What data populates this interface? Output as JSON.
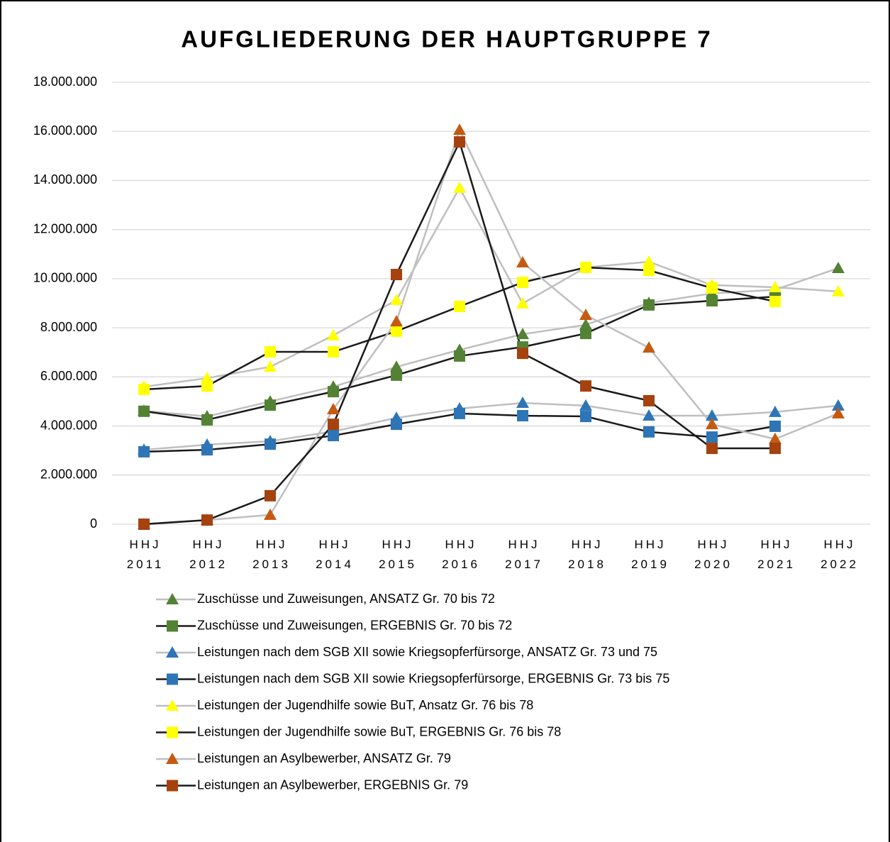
{
  "chart_data": {
    "type": "line",
    "title": "AUFGLIEDERUNG DER HAUPTGRUPPE 7",
    "categories": [
      "HHJ 2011",
      "HHJ 2012",
      "HHJ 2013",
      "HHJ 2014",
      "HHJ 2015",
      "HHJ 2016",
      "HHJ 2017",
      "HHJ 2018",
      "HHJ 2019",
      "HHJ 2020",
      "HHJ 2021",
      "HHJ 2022"
    ],
    "ylim": [
      0,
      18000000
    ],
    "yticks": [
      0,
      {
        "value": 2000000,
        "label": "2.000.000"
      },
      {
        "value": 4000000,
        "label": "4.000.000"
      },
      {
        "value": 6000000,
        "label": "6.000.000"
      },
      {
        "value": 8000000,
        "label": "8.000.000"
      },
      {
        "value": 10000000,
        "label": "10.000.000"
      },
      {
        "value": 12000000,
        "label": "12.000.000"
      },
      {
        "value": 14000000,
        "label": "14.000.000"
      },
      {
        "value": 16000000,
        "label": "16.000.000"
      },
      {
        "value": 18000000,
        "label": "18.000.000"
      }
    ],
    "grid": true,
    "series": [
      {
        "name": "Zuschüsse und Zuweisungen, ANSATZ Gr. 70 bis 72",
        "color": "#548235",
        "line_color": "#bfbfbf",
        "marker": "triangle",
        "values": [
          4620000,
          4390000,
          5000000,
          5600000,
          6410000,
          7100000,
          7740000,
          8120000,
          9010000,
          9400000,
          9550000,
          10430000
        ]
      },
      {
        "name": "Zuschüsse und Zuweisungen, ERGEBNIS Gr. 70 bis 72",
        "color": "#548235",
        "line_color": "#1a1a1a",
        "marker": "square",
        "values": [
          4600000,
          4250000,
          4850000,
          5400000,
          6070000,
          6850000,
          7220000,
          7770000,
          8930000,
          9100000,
          9270000,
          null
        ]
      },
      {
        "name": "Leistungen nach dem SGB XII sowie Kriegsopferfürsorge, ANSATZ Gr. 73 und 75",
        "color": "#2e75b6",
        "line_color": "#bfbfbf",
        "marker": "triangle",
        "values": [
          3030000,
          3240000,
          3380000,
          3780000,
          4330000,
          4710000,
          4940000,
          4830000,
          4420000,
          4420000,
          4570000,
          4830000
        ]
      },
      {
        "name": "Leistungen nach dem SGB XII sowie Kriegsopferfürsorge, ERGEBNIS Gr. 73 bis 75",
        "color": "#2e75b6",
        "line_color": "#1a1a1a",
        "marker": "square",
        "values": [
          2950000,
          3030000,
          3260000,
          3610000,
          4070000,
          4510000,
          4420000,
          4390000,
          3760000,
          3550000,
          3990000,
          null
        ]
      },
      {
        "name": "Leistungen der Jugendhilfe sowie BuT, Ansatz Gr. 76 bis 78",
        "color": "#ffff00",
        "line_color": "#bfbfbf",
        "marker": "triangle",
        "values": [
          5600000,
          5950000,
          6410000,
          7690000,
          9130000,
          13700000,
          8990000,
          10460000,
          10690000,
          9740000,
          9650000,
          9480000
        ]
      },
      {
        "name": "Leistungen der Jugendhilfe sowie BuT, ERGEBNIS Gr. 76 bis 78",
        "color": "#ffff00",
        "line_color": "#1a1a1a",
        "marker": "square",
        "values": [
          5490000,
          5630000,
          7020000,
          7020000,
          7860000,
          8870000,
          9850000,
          10460000,
          10340000,
          9620000,
          9070000,
          null
        ]
      },
      {
        "name": "Leistungen an Asylbewerber, ANSATZ Gr. 79",
        "color": "#c55a11",
        "line_color": "#bfbfbf",
        "marker": "triangle",
        "values": [
          0,
          170000,
          380000,
          4680000,
          8260000,
          16060000,
          10660000,
          8520000,
          7190000,
          4070000,
          3470000,
          4510000
        ]
      },
      {
        "name": "Leistungen an Asylbewerber, ERGEBNIS Gr. 79",
        "color": "#a5420f",
        "line_color": "#1a1a1a",
        "marker": "square",
        "values": [
          0,
          170000,
          1160000,
          4070000,
          10170000,
          15570000,
          6960000,
          5630000,
          5030000,
          3090000,
          3090000,
          null
        ]
      }
    ]
  }
}
